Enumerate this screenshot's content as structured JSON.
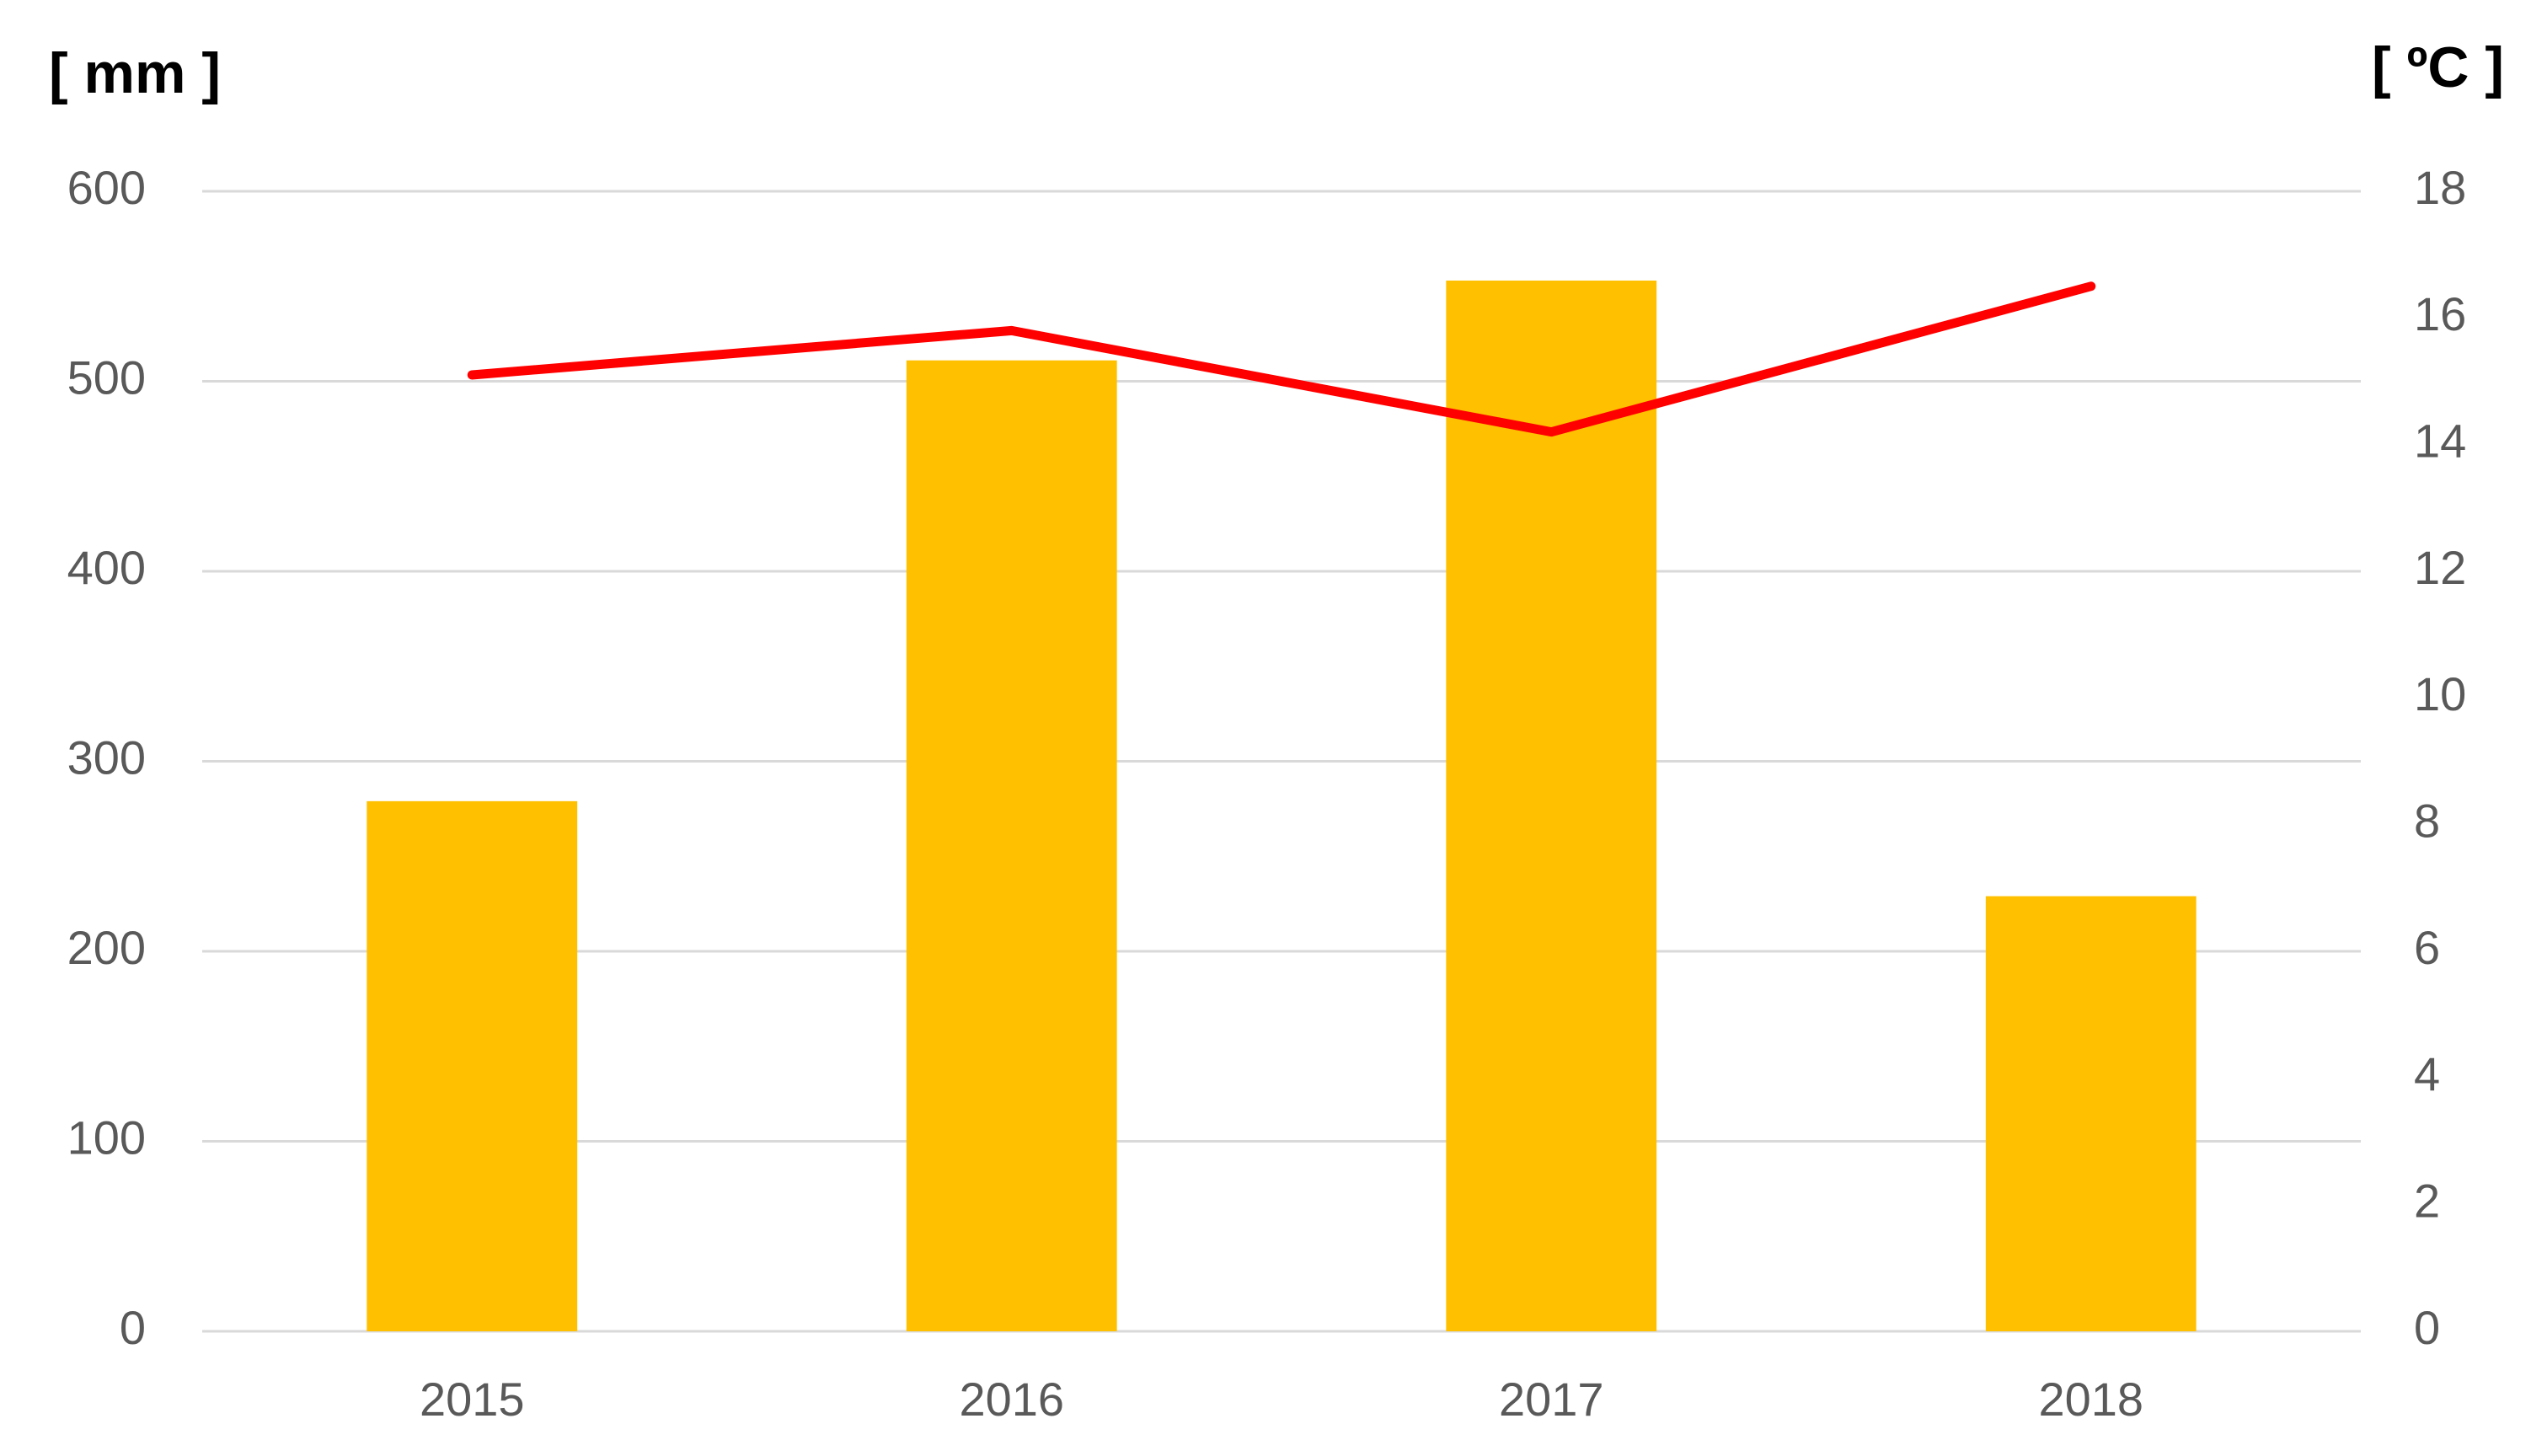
{
  "chart_data": {
    "type": "bar",
    "y_label": "[ mm ]",
    "y2_label": "[ ºC ]",
    "categories": [
      "2015",
      "2016",
      "2017",
      "2018"
    ],
    "series": [
      {
        "type": "bar",
        "color": "#ffc000",
        "values": [
          279,
          511,
          553,
          229
        ]
      },
      {
        "type": "line",
        "axis": "y2",
        "color": "#ff0000",
        "values": [
          15.1,
          15.8,
          14.2,
          16.5
        ]
      }
    ],
    "ylim": [
      0,
      600
    ],
    "yticks": [
      0,
      100,
      200,
      300,
      400,
      500,
      600
    ],
    "y2lim": [
      0,
      18
    ],
    "y2ticks": [
      0,
      2,
      4,
      6,
      8,
      10,
      12,
      14,
      16,
      18
    ],
    "grid": true
  }
}
